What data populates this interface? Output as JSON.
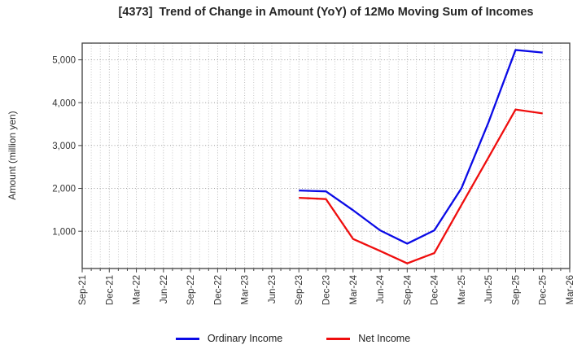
{
  "chart_data": {
    "type": "line",
    "title": "[4373]  Trend of Change in Amount (YoY) of 12Mo Moving Sum of Incomes",
    "ylabel": "Amount (million yen)",
    "x_tick_labels": [
      "Sep-21",
      "Dec-21",
      "Mar-22",
      "Jun-22",
      "Sep-22",
      "Dec-22",
      "Mar-23",
      "Jun-23",
      "Sep-23",
      "Dec-23",
      "Mar-24",
      "Jun-24",
      "Sep-24",
      "Dec-24",
      "Mar-25",
      "Jun-25",
      "Sep-25",
      "Dec-25",
      "Mar-26"
    ],
    "yticks": [
      1000,
      2000,
      3000,
      4000,
      5000
    ],
    "ytick_labels": [
      "1,000",
      "2,000",
      "3,000",
      "4,000",
      "5,000"
    ],
    "ylim": [
      130,
      5390
    ],
    "grid": true,
    "legend_position": "bottom-center",
    "series": [
      {
        "name": "Ordinary Income",
        "color": "#0a0ae6",
        "x": [
          "Sep-23",
          "Dec-23",
          "Mar-24",
          "Jun-24",
          "Sep-24",
          "Dec-24",
          "Mar-25",
          "Jun-25",
          "Sep-25",
          "Dec-25"
        ],
        "values": [
          1950,
          1930,
          1490,
          1020,
          710,
          1020,
          2000,
          3540,
          5230,
          5170
        ]
      },
      {
        "name": "Net Income",
        "color": "#ef0e0e",
        "x": [
          "Sep-23",
          "Dec-23",
          "Mar-24",
          "Jun-24",
          "Sep-24",
          "Dec-24",
          "Mar-25",
          "Jun-25",
          "Sep-25",
          "Dec-25"
        ],
        "values": [
          1780,
          1750,
          820,
          540,
          250,
          490,
          1610,
          2720,
          3840,
          3750
        ]
      }
    ],
    "colors": {
      "frame": "#3d3d3d",
      "grid_major_h": "#8c8c8c",
      "grid_minor_v": "#bdbdbd",
      "grid_major_v": "#a8a8a8",
      "tick_label": "#333333"
    }
  }
}
